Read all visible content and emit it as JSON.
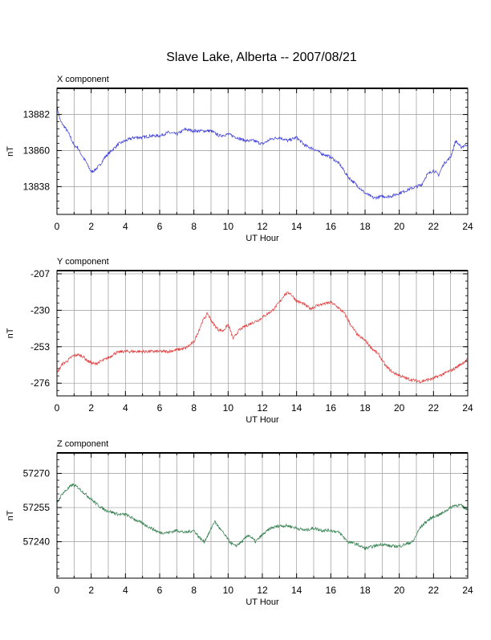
{
  "page": {
    "title": "Slave Lake, Alberta -- 2007/08/21"
  },
  "chart_data": [
    {
      "type": "line",
      "panel_label": "X component",
      "xlabel": "UT Hour",
      "ylabel": "nT",
      "xlim": [
        0,
        24
      ],
      "ylim": [
        13821,
        13898
      ],
      "xticks": [
        0,
        2,
        4,
        6,
        8,
        10,
        12,
        14,
        16,
        18,
        20,
        22,
        24
      ],
      "yticks": [
        13838,
        13860,
        13882
      ],
      "grid": true,
      "color": "#3b3bd9",
      "series": [
        {
          "x": [
            0,
            0.2,
            0.4,
            0.6,
            0.8,
            1,
            1.2,
            1.4,
            1.7,
            2,
            2.2,
            2.5,
            2.8,
            3.2,
            3.6,
            4,
            4.5,
            5,
            5.5,
            6,
            6.5,
            7,
            7.5,
            8,
            8.5,
            9,
            9.5,
            10,
            10.5,
            11,
            11.5,
            12,
            12.5,
            13,
            13.5,
            14,
            14.5,
            15,
            15.5,
            16,
            16.5,
            17,
            17.5,
            18,
            18.5,
            19,
            19.5,
            20,
            20.5,
            21,
            21.3,
            21.6,
            22,
            22.3,
            22.6,
            23,
            23.3,
            23.6,
            24
          ],
          "values": [
            13887,
            13878,
            13875,
            13872,
            13868,
            13863,
            13862,
            13858,
            13853,
            13847,
            13848,
            13851,
            13856,
            13860,
            13864,
            13866,
            13868,
            13868,
            13869,
            13869,
            13871,
            13870,
            13873,
            13872,
            13872,
            13872,
            13869,
            13870,
            13868,
            13866,
            13866,
            13864,
            13867,
            13868,
            13866,
            13868,
            13863,
            13861,
            13858,
            13856,
            13852,
            13844,
            13839,
            13834,
            13831,
            13832,
            13832,
            13834,
            13836,
            13838,
            13839,
            13845,
            13848,
            13845,
            13852,
            13856,
            13866,
            13862,
            13864
          ]
        }
      ]
    },
    {
      "type": "line",
      "panel_label": "Y component",
      "xlabel": "UT Hour",
      "ylabel": "nT",
      "xlim": [
        0,
        24
      ],
      "ylim": [
        -284,
        -205
      ],
      "xticks": [
        0,
        2,
        4,
        6,
        8,
        10,
        12,
        14,
        16,
        18,
        20,
        22,
        24
      ],
      "yticks": [
        -207,
        -230,
        -253,
        -276
      ],
      "grid": true,
      "color": "#e03c3c",
      "series": [
        {
          "x": [
            0,
            0.3,
            0.6,
            0.9,
            1.2,
            1.5,
            1.8,
            2.2,
            2.6,
            3,
            3.4,
            3.8,
            4.2,
            4.6,
            5,
            5.5,
            6,
            6.5,
            7,
            7.5,
            8,
            8.2,
            8.5,
            8.8,
            9.1,
            9.4,
            9.7,
            10,
            10.3,
            10.6,
            11,
            11.4,
            11.8,
            12.2,
            12.6,
            13,
            13.3,
            13.6,
            14,
            14.4,
            14.8,
            15.2,
            15.6,
            16,
            16.4,
            16.8,
            17.2,
            17.6,
            18,
            18.4,
            18.8,
            19.2,
            19.6,
            20,
            20.4,
            20.8,
            21.2,
            21.6,
            22,
            22.4,
            22.8,
            23.2,
            23.6,
            24
          ],
          "values": [
            -270,
            -264,
            -262,
            -259,
            -258,
            -259,
            -262,
            -264,
            -262,
            -260,
            -257,
            -256,
            -256,
            -256,
            -256,
            -256,
            -256,
            -256,
            -255,
            -254,
            -250,
            -245,
            -237,
            -232,
            -238,
            -242,
            -243,
            -239,
            -248,
            -243,
            -240,
            -238,
            -236,
            -233,
            -230,
            -225,
            -220,
            -219,
            -224,
            -226,
            -229,
            -227,
            -226,
            -225,
            -228,
            -232,
            -240,
            -246,
            -249,
            -254,
            -258,
            -265,
            -269,
            -271,
            -273,
            -274,
            -275,
            -274,
            -273,
            -271,
            -269,
            -267,
            -264,
            -261
          ]
        }
      ]
    },
    {
      "type": "line",
      "panel_label": "Z component",
      "xlabel": "UT Hour",
      "ylabel": "nT",
      "xlim": [
        0,
        24
      ],
      "ylim": [
        57224,
        57279
      ],
      "xticks": [
        0,
        2,
        4,
        6,
        8,
        10,
        12,
        14,
        16,
        18,
        20,
        22,
        24
      ],
      "yticks": [
        57240,
        57255,
        57270
      ],
      "grid": true,
      "color": "#2e7d4a",
      "series": [
        {
          "x": [
            0,
            0.3,
            0.6,
            0.9,
            1.2,
            1.5,
            1.8,
            2.1,
            2.4,
            2.8,
            3.2,
            3.6,
            4,
            4.5,
            5,
            5.5,
            6,
            6.5,
            7,
            7.5,
            8,
            8.3,
            8.6,
            8.9,
            9.2,
            9.5,
            9.8,
            10.1,
            10.4,
            10.8,
            11.2,
            11.6,
            12,
            12.5,
            13,
            13.5,
            14,
            14.5,
            15,
            15.5,
            16,
            16.5,
            17,
            17.5,
            18,
            18.5,
            19,
            19.5,
            20,
            20.4,
            20.8,
            21.2,
            21.6,
            22,
            22.4,
            22.8,
            23.2,
            23.6,
            24
          ],
          "values": [
            57257,
            57261,
            57263,
            57265,
            57264,
            57262,
            57260,
            57258,
            57256,
            57254,
            57253,
            57252,
            57252,
            57250,
            57248,
            57246,
            57244,
            57244,
            57245,
            57244,
            57245,
            57242,
            57240,
            57244,
            57249,
            57246,
            57243,
            57240,
            57238,
            57240,
            57243,
            57240,
            57243,
            57246,
            57247,
            57247,
            57246,
            57245,
            57246,
            57245,
            57245,
            57244,
            57240,
            57239,
            57237,
            57238,
            57239,
            57238,
            57238,
            57239,
            57240,
            57246,
            57249,
            57251,
            57252,
            57254,
            57256,
            57256,
            57254
          ]
        }
      ]
    }
  ]
}
